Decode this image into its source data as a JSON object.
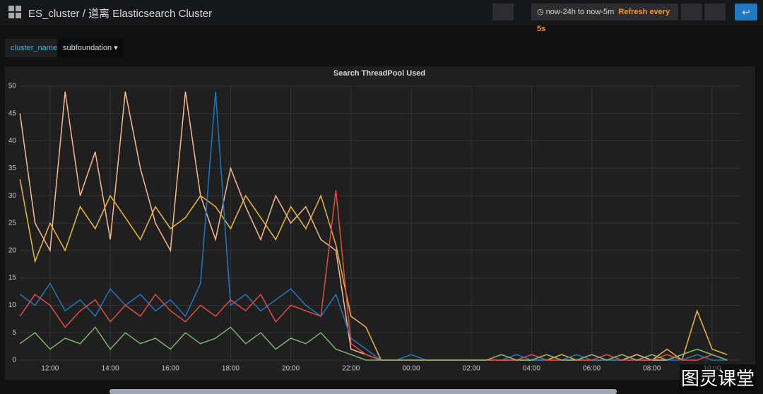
{
  "header": {
    "title": "ES_cluster / 道离 Elasticsearch Cluster",
    "time_range": "now-24h to now-5m",
    "refresh": "Refresh every 5s"
  },
  "variables": [
    {
      "label": "cluster_name",
      "value": "subfoundation"
    }
  ],
  "watermark": "图灵课堂",
  "chart_data": {
    "type": "line",
    "title": "Search ThreadPool Used",
    "x": [
      11,
      11.5,
      12,
      12.5,
      13,
      13.5,
      14,
      14.5,
      15,
      15.5,
      16,
      16.5,
      17,
      17.5,
      18,
      18.5,
      19,
      19.5,
      20,
      20.5,
      21,
      21.5,
      22,
      22.5,
      23,
      23.5,
      24,
      24.5,
      25,
      25.5,
      26,
      26.5,
      27,
      27.5,
      28,
      28.5,
      29,
      29.5,
      30,
      30.5,
      31,
      31.5,
      32,
      32.5,
      33,
      33.5,
      34,
      34.5
    ],
    "xlim": [
      10.97,
      34.94
    ],
    "xticks": [
      {
        "value": 12,
        "label": "12:00"
      },
      {
        "value": 14,
        "label": "14:00"
      },
      {
        "value": 16,
        "label": "16:00"
      },
      {
        "value": 18,
        "label": "18:00"
      },
      {
        "value": 20,
        "label": "20:00"
      },
      {
        "value": 22,
        "label": "22:00"
      },
      {
        "value": 24,
        "label": "00:00"
      },
      {
        "value": 26,
        "label": "02:00"
      },
      {
        "value": 28,
        "label": "04:00"
      },
      {
        "value": 30,
        "label": "06:00"
      },
      {
        "value": 32,
        "label": "08:00"
      },
      {
        "value": 34,
        "label": "10:00"
      }
    ],
    "ylim": [
      0,
      50
    ],
    "yticks": [
      0,
      5,
      10,
      15,
      20,
      25,
      30,
      35,
      40,
      45,
      50
    ],
    "grid": true,
    "series": [
      {
        "color": "#f9ba8f",
        "values": [
          45,
          25,
          20,
          49,
          30,
          38,
          22,
          49,
          35,
          25,
          20,
          49,
          30,
          22,
          35,
          28,
          22,
          30,
          25,
          28,
          22,
          20,
          2,
          1,
          0,
          0,
          0,
          0,
          0,
          0,
          0,
          0,
          0,
          0,
          0,
          1,
          0,
          0,
          1,
          0,
          0,
          1,
          0,
          0,
          1,
          2,
          1,
          0
        ]
      },
      {
        "color": "#eab839",
        "values": [
          33,
          18,
          25,
          20,
          28,
          24,
          30,
          26,
          22,
          28,
          24,
          26,
          30,
          28,
          24,
          30,
          26,
          22,
          28,
          24,
          30,
          21,
          8,
          6,
          0,
          0,
          0,
          0,
          0,
          0,
          0,
          0,
          1,
          0,
          0,
          0,
          1,
          0,
          0,
          0,
          1,
          0,
          0,
          2,
          0,
          9,
          2,
          1
        ]
      },
      {
        "color": "#1f78c1",
        "values": [
          12,
          10,
          14,
          9,
          11,
          8,
          13,
          10,
          12,
          9,
          11,
          8,
          14,
          49,
          10,
          12,
          9,
          11,
          13,
          10,
          8,
          12,
          4,
          2,
          0,
          0,
          1,
          0,
          0,
          0,
          0,
          0,
          0,
          1,
          0,
          0,
          0,
          1,
          0,
          0,
          0,
          0,
          1,
          0,
          0,
          1,
          0,
          0
        ]
      },
      {
        "color": "#e24d42",
        "values": [
          8,
          12,
          10,
          6,
          9,
          11,
          7,
          10,
          8,
          12,
          9,
          7,
          10,
          8,
          11,
          9,
          12,
          7,
          10,
          9,
          8,
          31,
          3,
          1,
          0,
          0,
          0,
          0,
          0,
          0,
          0,
          0,
          0,
          0,
          1,
          0,
          0,
          0,
          0,
          1,
          0,
          0,
          0,
          1,
          0,
          0,
          1,
          0
        ]
      },
      {
        "color": "#7eb26d",
        "values": [
          3,
          5,
          2,
          4,
          3,
          6,
          2,
          5,
          3,
          4,
          2,
          5,
          3,
          4,
          6,
          3,
          5,
          2,
          4,
          3,
          5,
          2,
          1,
          0,
          0,
          0,
          0,
          0,
          0,
          0,
          0,
          0,
          1,
          0,
          0,
          1,
          0,
          0,
          1,
          0,
          1,
          0,
          1,
          0,
          1,
          2,
          1,
          0
        ]
      }
    ]
  }
}
